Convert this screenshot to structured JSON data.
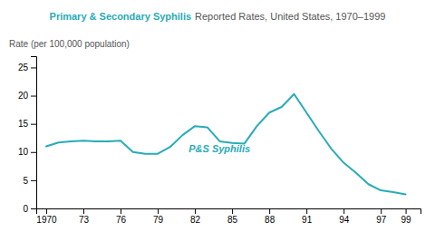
{
  "chart_data": {
    "type": "line",
    "title": "Primary & Secondary Syphilis",
    "subtitle": "Reported Rates, United States, 1970–1999",
    "y_label": "Rate (per 100,000 population)",
    "x": [
      1970,
      1971,
      1972,
      1973,
      1974,
      1975,
      1976,
      1977,
      1978,
      1979,
      1980,
      1981,
      1982,
      1983,
      1984,
      1985,
      1986,
      1987,
      1988,
      1989,
      1990,
      1991,
      1992,
      1993,
      1994,
      1995,
      1996,
      1997,
      1998,
      1999
    ],
    "values": [
      11.0,
      11.7,
      11.9,
      12.0,
      11.9,
      11.9,
      12.0,
      10.0,
      9.7,
      9.7,
      10.9,
      13.0,
      14.6,
      14.4,
      11.9,
      11.6,
      11.5,
      14.6,
      17.0,
      18.0,
      20.3,
      17.0,
      13.7,
      10.6,
      8.1,
      6.3,
      4.3,
      3.2,
      2.9,
      2.5
    ],
    "color": "#29ABB8",
    "annotations": [
      {
        "text": "P&S Syphilis",
        "x": 1981.5,
        "y": 10.5
      }
    ],
    "xlim": [
      1969.2,
      2000.2
    ],
    "xticks": [
      1970,
      {
        "value": 1973,
        "label": "73"
      },
      {
        "value": 1976,
        "label": "76"
      },
      {
        "value": 1979,
        "label": "79"
      },
      {
        "value": 1982,
        "label": "82"
      },
      {
        "value": 1985,
        "label": "85"
      },
      {
        "value": 1988,
        "label": "88"
      },
      {
        "value": 1991,
        "label": "91"
      },
      {
        "value": 1994,
        "label": "94"
      },
      {
        "value": 1997,
        "label": "97"
      },
      {
        "value": 1999,
        "label": "99"
      }
    ],
    "ylim": [
      0,
      27
    ],
    "yticks": [
      0,
      5,
      10,
      15,
      20,
      25
    ],
    "grid": false
  }
}
